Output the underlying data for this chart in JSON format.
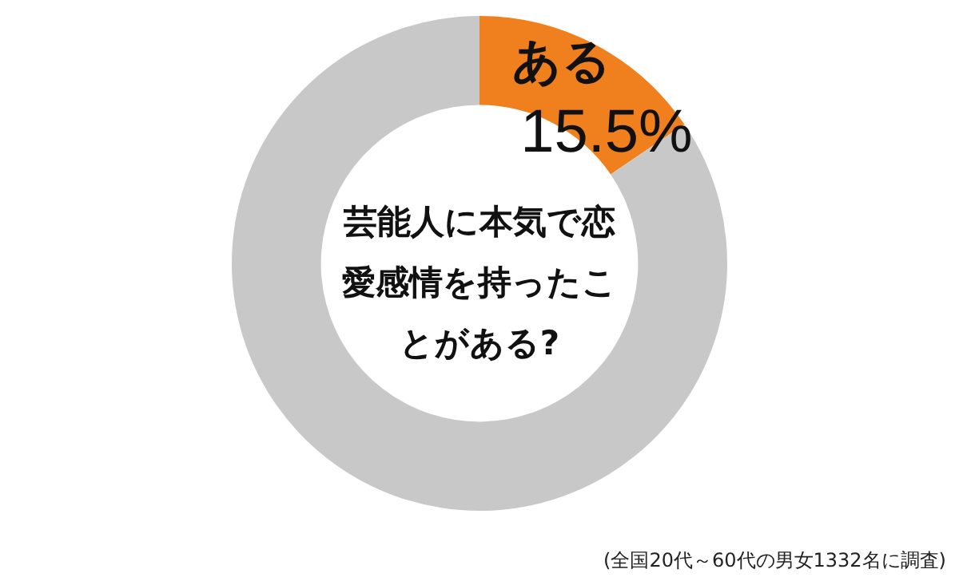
{
  "chart_data": {
    "type": "donut",
    "title": "芸能人に本気で恋愛感情を持ったことがある?",
    "categories": [
      "ある",
      null
    ],
    "values": [
      15.5,
      84.5
    ],
    "colors": [
      "#f07f1d",
      "#c8c8c8"
    ],
    "value_labels": [
      "15.5%",
      null
    ],
    "legend": false,
    "annotations": [
      "(全国20代～60代の男女1332名に調査)"
    ]
  }
}
